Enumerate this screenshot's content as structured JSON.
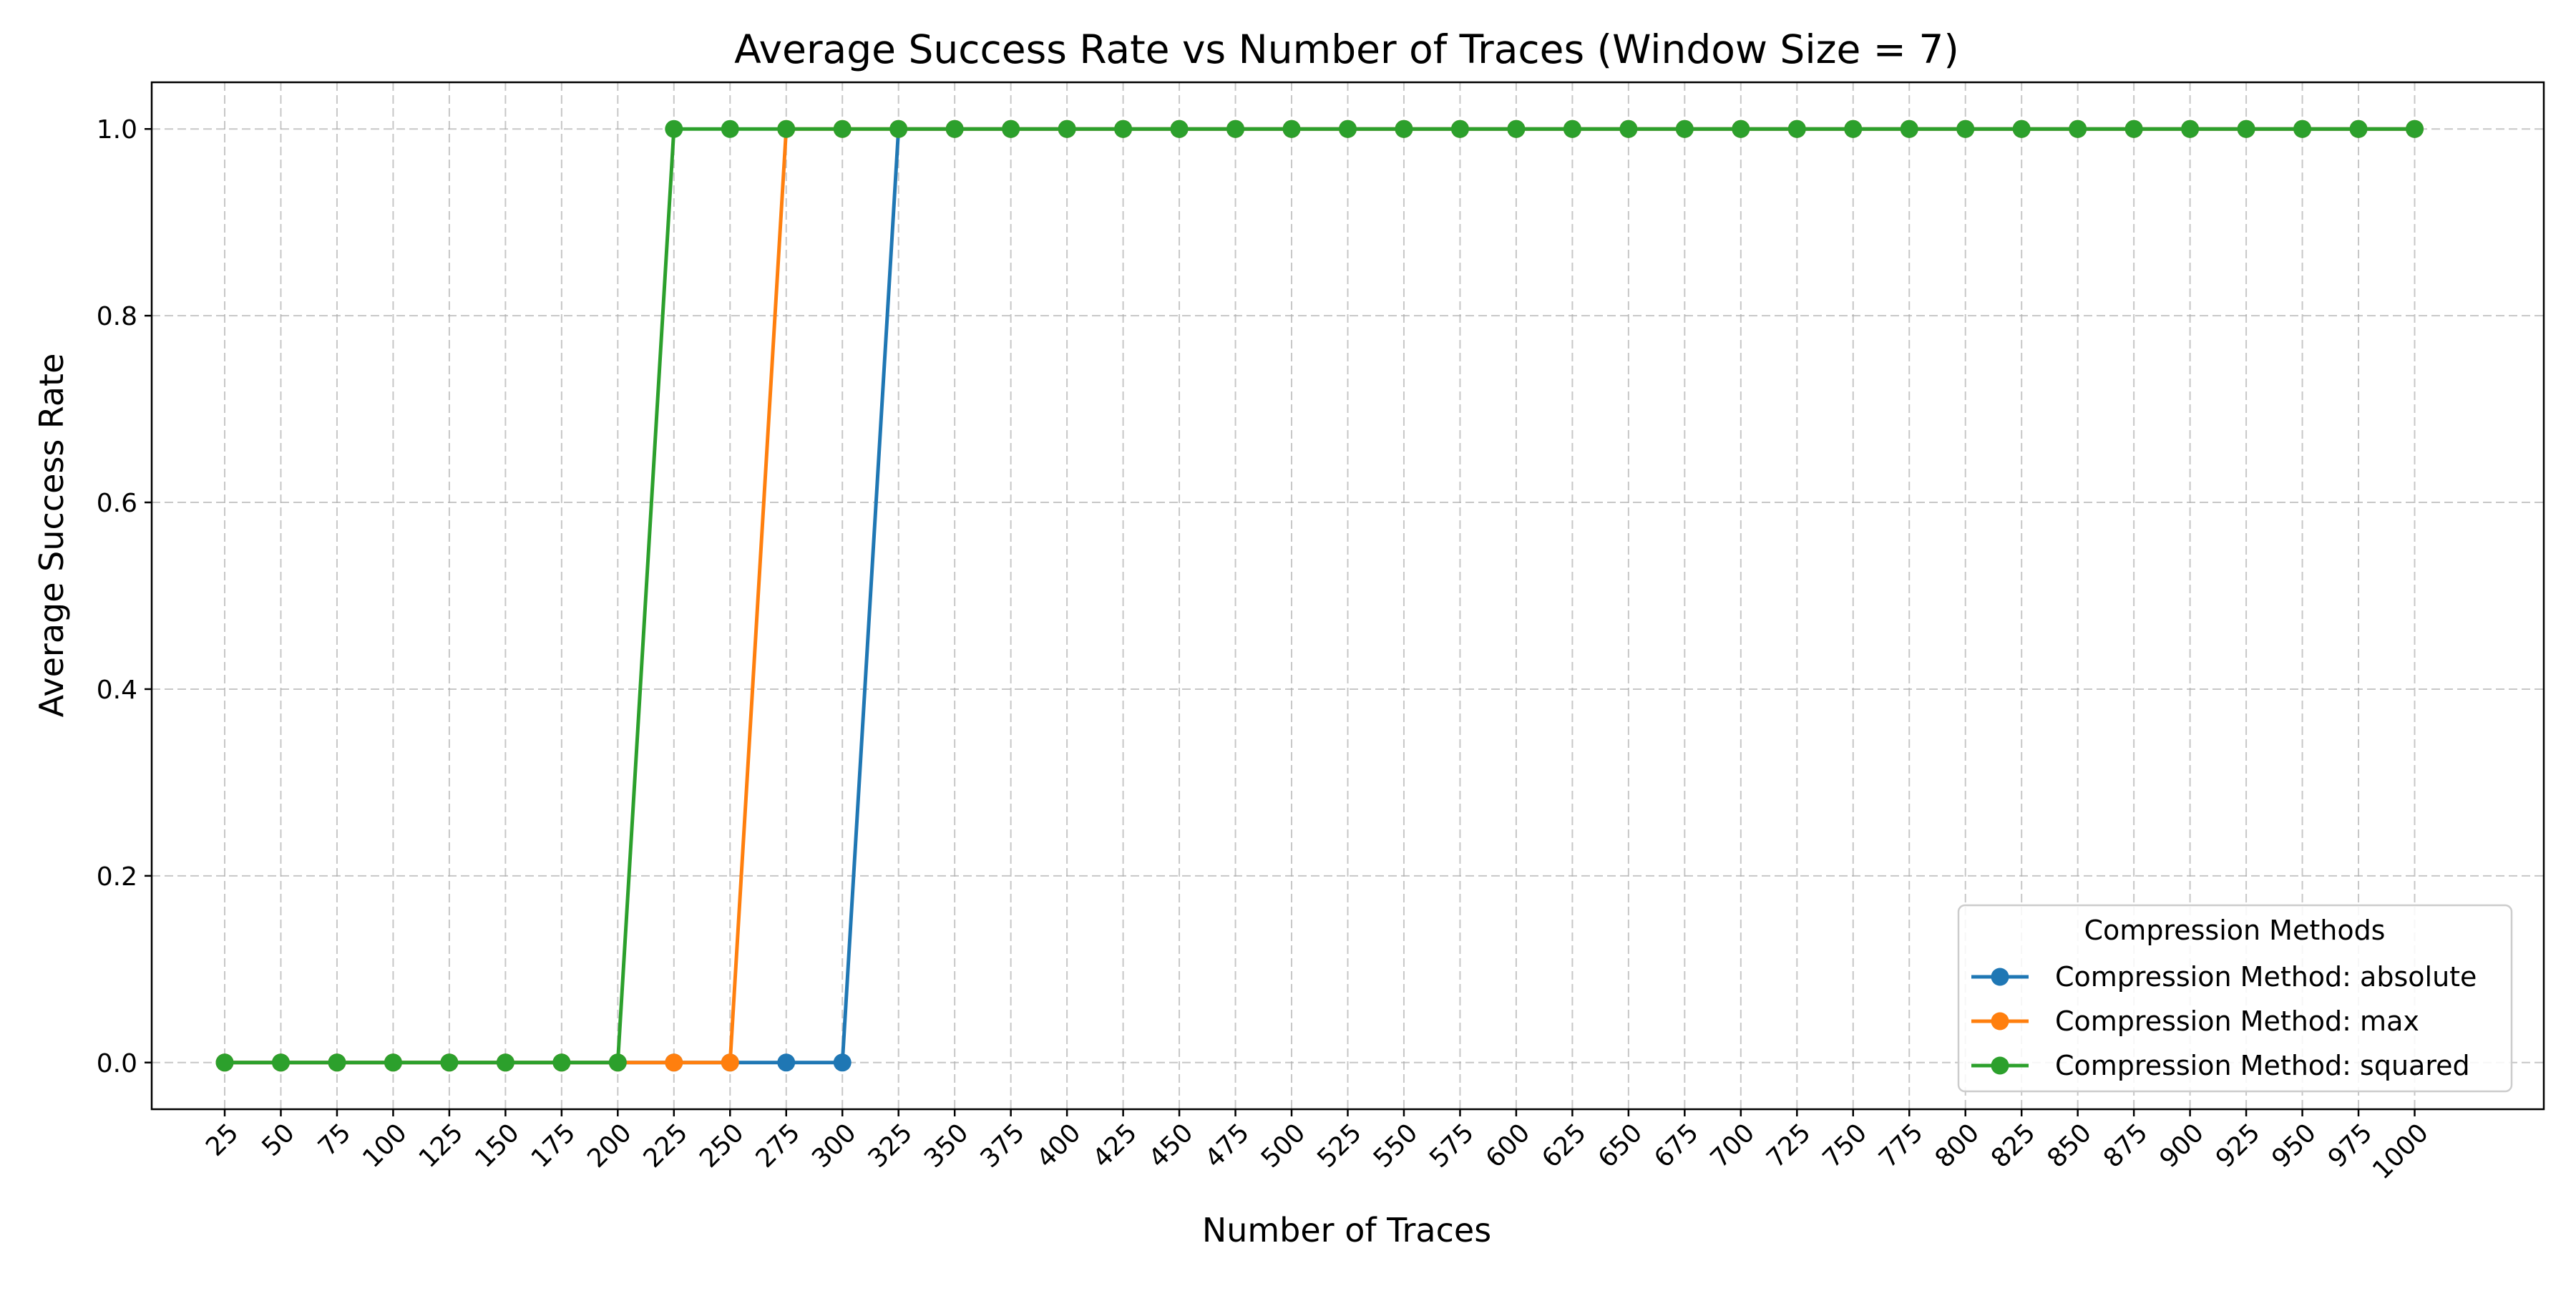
{
  "chart_data": {
    "type": "line",
    "title": "Average Success Rate vs Number of Traces (Window Size = 7)",
    "xlabel": "Number of Traces",
    "ylabel": "Average Success Rate",
    "categories": [
      "25",
      "50",
      "75",
      "100",
      "125",
      "150",
      "175",
      "200",
      "225",
      "250",
      "275",
      "300",
      "325",
      "350",
      "375",
      "400",
      "425",
      "450",
      "475",
      "500",
      "525",
      "550",
      "575",
      "600",
      "625",
      "650",
      "675",
      "700",
      "725",
      "750",
      "775",
      "800",
      "825",
      "850",
      "875",
      "900",
      "925",
      "950",
      "975",
      "1000"
    ],
    "x": [
      25,
      50,
      75,
      100,
      125,
      150,
      175,
      200,
      225,
      250,
      275,
      300,
      325,
      350,
      375,
      400,
      425,
      450,
      475,
      500,
      525,
      550,
      575,
      600,
      625,
      650,
      675,
      700,
      725,
      750,
      775,
      800,
      825,
      850,
      875,
      900,
      925,
      950,
      975,
      1000
    ],
    "yticks": [
      "0.0",
      "0.2",
      "0.4",
      "0.6",
      "0.8",
      "1.0"
    ],
    "ytick_values": [
      0,
      0.2,
      0.4,
      0.6,
      0.8,
      1.0
    ],
    "ylim": [
      -0.05,
      1.05
    ],
    "xlim": [
      -7.5,
      1057.5
    ],
    "grid": true,
    "legend": {
      "title": "Compression Methods",
      "placement": "lower-right"
    },
    "series": [
      {
        "name": "Compression Method: absolute",
        "color": "#1f77b4",
        "values": [
          0,
          0,
          0,
          0,
          0,
          0,
          0,
          0,
          0,
          0,
          0,
          0,
          1,
          1,
          1,
          1,
          1,
          1,
          1,
          1,
          1,
          1,
          1,
          1,
          1,
          1,
          1,
          1,
          1,
          1,
          1,
          1,
          1,
          1,
          1,
          1,
          1,
          1,
          1,
          1
        ]
      },
      {
        "name": "Compression Method: max",
        "color": "#ff7f0e",
        "values": [
          0,
          0,
          0,
          0,
          0,
          0,
          0,
          0,
          0,
          0,
          1,
          1,
          1,
          1,
          1,
          1,
          1,
          1,
          1,
          1,
          1,
          1,
          1,
          1,
          1,
          1,
          1,
          1,
          1,
          1,
          1,
          1,
          1,
          1,
          1,
          1,
          1,
          1,
          1,
          1
        ]
      },
      {
        "name": "Compression Method: squared",
        "color": "#2ca02c",
        "values": [
          0,
          0,
          0,
          0,
          0,
          0,
          0,
          0,
          1,
          1,
          1,
          1,
          1,
          1,
          1,
          1,
          1,
          1,
          1,
          1,
          1,
          1,
          1,
          1,
          1,
          1,
          1,
          1,
          1,
          1,
          1,
          1,
          1,
          1,
          1,
          1,
          1,
          1,
          1,
          1
        ]
      }
    ]
  }
}
